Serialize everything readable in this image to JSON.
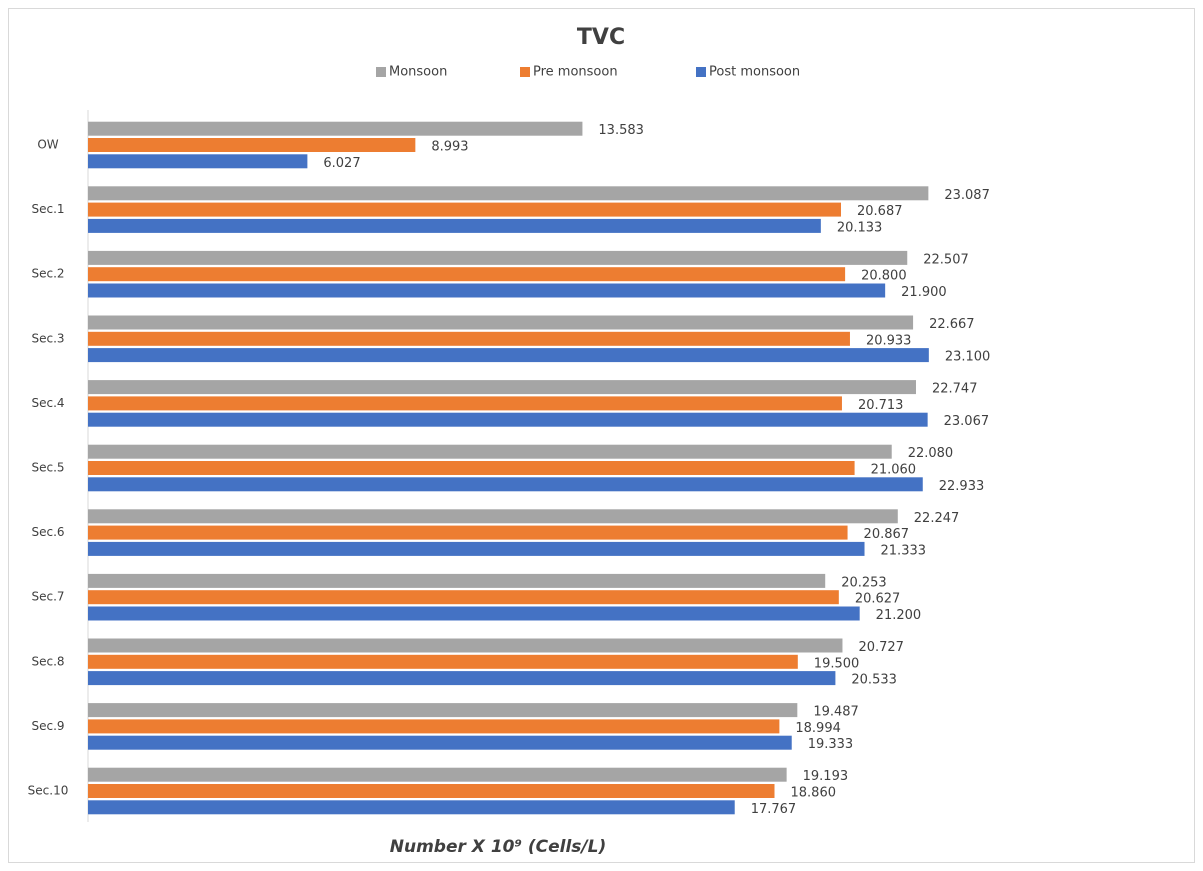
{
  "chart_data": {
    "type": "barh",
    "title": "TVC",
    "x_label": "Number X 10⁹ (Cells/L)",
    "categories": [
      "OW",
      "Sec.1",
      "Sec.2",
      "Sec.3",
      "Sec.4",
      "Sec.5",
      "Sec.6",
      "Sec.7",
      "Sec.8",
      "Sec.9",
      "Sec.10"
    ],
    "series": [
      {
        "name": "Monsoon",
        "color": "#a5a5a5",
        "values": [
          13.583,
          23.087,
          22.507,
          22.667,
          22.747,
          22.08,
          22.247,
          20.253,
          20.727,
          19.487,
          19.193
        ],
        "value_labels": [
          "13.583",
          "23.087",
          "22.507",
          "22.667",
          "22.747",
          "22.080",
          "22.247",
          "20.253",
          "20.727",
          "19.487",
          "19.193"
        ]
      },
      {
        "name": "Pre monsoon",
        "color": "#ed7d31",
        "values": [
          8.993,
          20.687,
          20.8,
          20.933,
          20.713,
          21.06,
          20.867,
          20.627,
          19.5,
          18.994,
          18.86
        ],
        "value_labels": [
          "8.993",
          "20.687",
          "20.800",
          "20.933",
          "20.713",
          "21.060",
          "20.867",
          "20.627",
          "19.500",
          "18.994",
          "18.860"
        ]
      },
      {
        "name": "Post monsoon",
        "color": "#4472c4",
        "values": [
          6.027,
          20.133,
          21.9,
          23.1,
          23.067,
          22.933,
          21.333,
          21.2,
          20.533,
          19.333,
          17.767
        ],
        "value_labels": [
          "6.027",
          "20.133",
          "21.900",
          "23.100",
          "23.067",
          "22.933",
          "21.333",
          "21.200",
          "20.533",
          "19.333",
          "17.767"
        ]
      }
    ],
    "xlim": [
      0,
      25
    ],
    "legend": "top"
  }
}
